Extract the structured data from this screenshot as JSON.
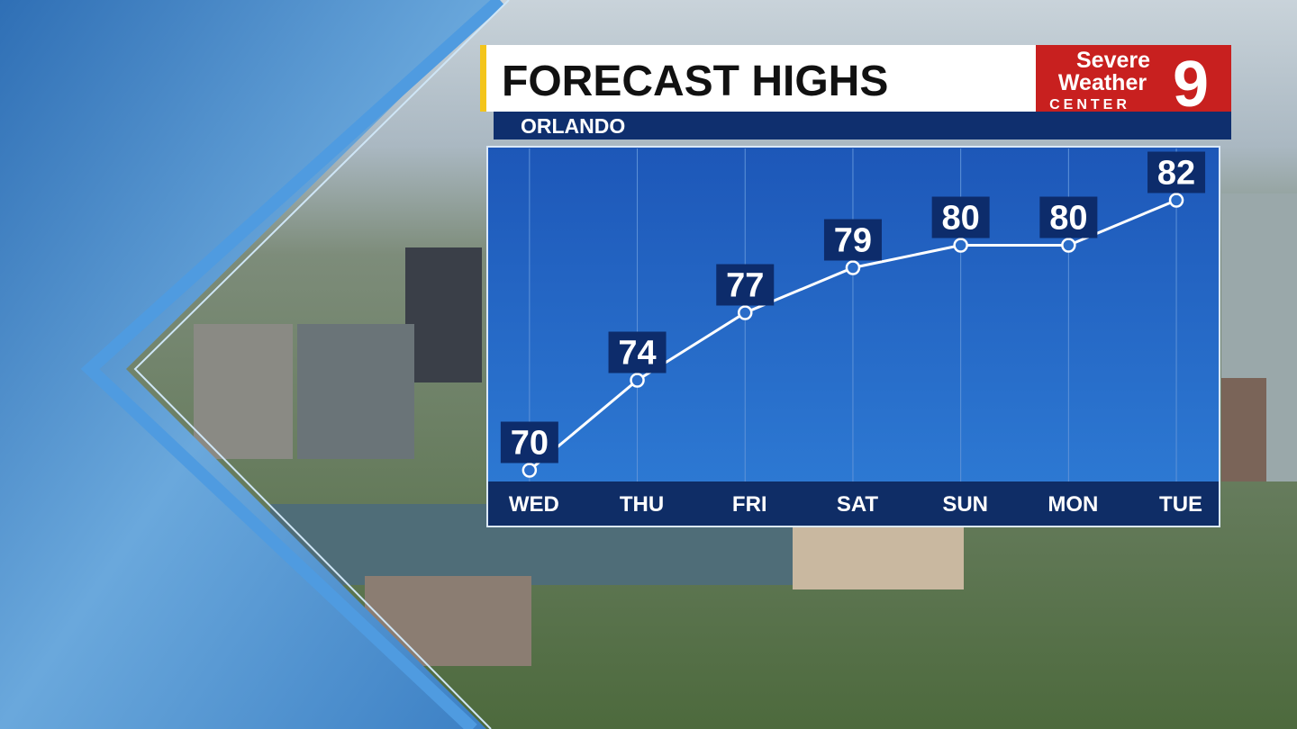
{
  "chart_data": {
    "type": "line",
    "title": "FORECAST HIGHS",
    "subtitle": "ORLANDO",
    "logo": {
      "line1": "Severe",
      "line2": "Weather",
      "line3": "CENTER",
      "number": "9"
    },
    "categories": [
      "WED",
      "THU",
      "FRI",
      "SAT",
      "SUN",
      "MON",
      "TUE"
    ],
    "values": [
      70,
      74,
      77,
      79,
      80,
      80,
      82
    ],
    "color": "#ffffff",
    "ylim": [
      69.5,
      84.3
    ]
  }
}
